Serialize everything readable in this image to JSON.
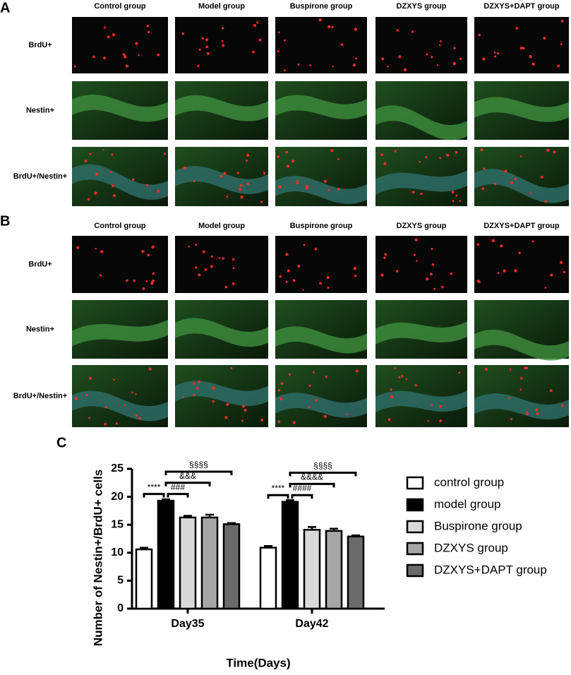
{
  "panels": [
    {
      "label": "A",
      "columns": [
        "Control group",
        "Model group",
        "Buspirone group",
        "DZXYS group",
        "DZXYS+DAPT group"
      ],
      "rows": [
        "BrdU+",
        "Nestin+",
        "BrdU+/Nestin+"
      ]
    },
    {
      "label": "B",
      "columns": [
        "Control group",
        "Model group",
        "Buspirone group",
        "DZXYS group",
        "DZXYS+DAPT group"
      ],
      "rows": [
        "BrdU+",
        "Nestin+",
        "BrdU+/Nestin+"
      ]
    }
  ],
  "chart_label": "C",
  "chart_data": {
    "type": "bar",
    "y_label": "Number of Nestin+/BrdU+ cells",
    "x_label": "Time(Days)",
    "categories": [
      "Day35",
      "Day42"
    ],
    "series": [
      {
        "name": "control group",
        "color": "#ffffff",
        "values": [
          10.6,
          10.9
        ],
        "errors": [
          0.3,
          0.3
        ]
      },
      {
        "name": "model group",
        "color": "#000000",
        "values": [
          19.3,
          19.1
        ],
        "errors": [
          0.25,
          0.3
        ]
      },
      {
        "name": "Buspirone group",
        "color": "#d9d9d9",
        "values": [
          16.3,
          14.1
        ],
        "errors": [
          0.3,
          0.5
        ]
      },
      {
        "name": "DZXYS group",
        "color": "#a6a6a6",
        "values": [
          16.3,
          13.9
        ],
        "errors": [
          0.5,
          0.4
        ]
      },
      {
        "name": "DZXYS+DAPT group",
        "color": "#6b6b6b",
        "values": [
          15.1,
          12.9
        ],
        "errors": [
          0.2,
          0.2
        ]
      }
    ],
    "annotations": [
      {
        "text": "****",
        "category": 0,
        "from": 0,
        "to": 1
      },
      {
        "text": "###",
        "category": 0,
        "from": 1,
        "to": 2
      },
      {
        "text": "&&&",
        "category": 0,
        "from": 1,
        "to": 3
      },
      {
        "text": "§§§§",
        "category": 0,
        "from": 1,
        "to": 4
      },
      {
        "text": "****",
        "category": 1,
        "from": 0,
        "to": 1
      },
      {
        "text": "####",
        "category": 1,
        "from": 1,
        "to": 2
      },
      {
        "text": "&&&&",
        "category": 1,
        "from": 1,
        "to": 3
      },
      {
        "text": "§§§§",
        "category": 1,
        "from": 1,
        "to": 4
      }
    ],
    "ylim": [
      0,
      25
    ],
    "yticks": [
      0,
      5,
      10,
      15,
      20,
      25
    ],
    "legend": "right"
  }
}
